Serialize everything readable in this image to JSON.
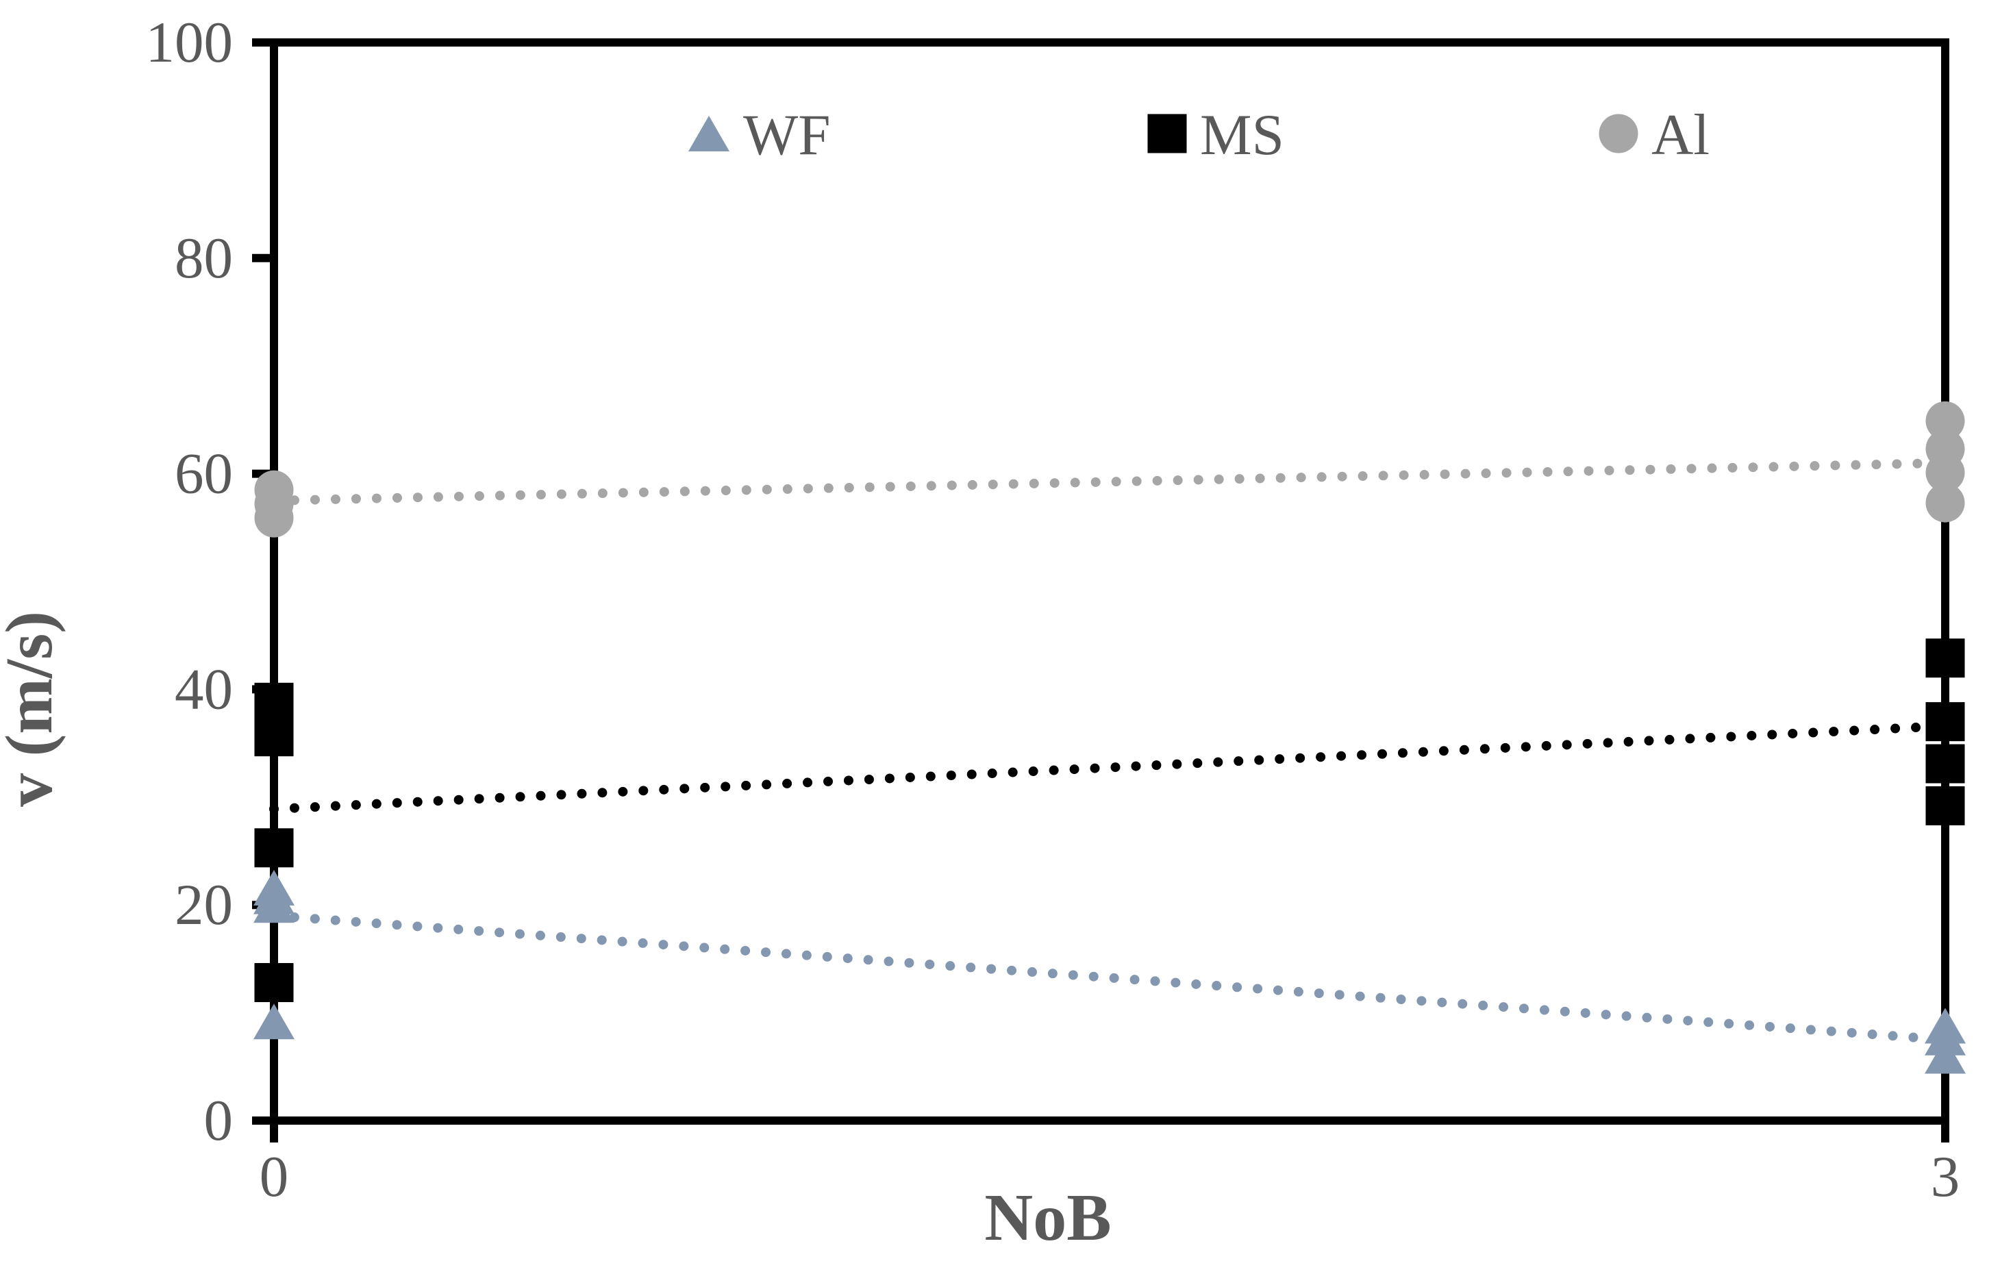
{
  "chart_data": {
    "type": "scatter",
    "title": "",
    "xlabel": "NoB",
    "ylabel": "v (m/s)",
    "xlim": [
      0,
      3
    ],
    "ylim": [
      0,
      100
    ],
    "xticks": [
      0,
      3
    ],
    "yticks": [
      100,
      80,
      60,
      40,
      20,
      0
    ],
    "grid": false,
    "legend_position": "top-center-inside",
    "axis_color": "#000000",
    "text_color": "#595959",
    "series": [
      {
        "name": "WF",
        "marker": "triangle",
        "color": "#8497B0",
        "points": [
          {
            "x": 0,
            "y": 21.6
          },
          {
            "x": 0,
            "y": 20.8
          },
          {
            "x": 0,
            "y": 20.0
          },
          {
            "x": 0,
            "y": 9.2
          },
          {
            "x": 3,
            "y": 8.8
          },
          {
            "x": 3,
            "y": 7.7
          },
          {
            "x": 3,
            "y": 6.0
          }
        ],
        "trendline": {
          "style": "dotted",
          "x1": 0,
          "y1": 19.0,
          "x2": 3,
          "y2": 7.5
        }
      },
      {
        "name": "MS",
        "marker": "square",
        "color": "#000000",
        "points": [
          {
            "x": 0,
            "y": 38.8
          },
          {
            "x": 0,
            "y": 35.6
          },
          {
            "x": 0,
            "y": 25.3
          },
          {
            "x": 0,
            "y": 12.8
          },
          {
            "x": 3,
            "y": 42.9
          },
          {
            "x": 3,
            "y": 37.0
          },
          {
            "x": 3,
            "y": 33.1
          },
          {
            "x": 3,
            "y": 29.2
          }
        ],
        "trendline": {
          "style": "dotted",
          "x1": 0,
          "y1": 28.9,
          "x2": 3,
          "y2": 36.6
        }
      },
      {
        "name": "Al",
        "marker": "circle",
        "color": "#A6A6A6",
        "points": [
          {
            "x": 0,
            "y": 58.5
          },
          {
            "x": 0,
            "y": 57.2
          },
          {
            "x": 0,
            "y": 55.9
          },
          {
            "x": 3,
            "y": 64.9
          },
          {
            "x": 3,
            "y": 62.3
          },
          {
            "x": 3,
            "y": 60.1
          },
          {
            "x": 3,
            "y": 57.3
          }
        ],
        "trendline": {
          "style": "dotted",
          "x1": 0,
          "y1": 57.5,
          "x2": 3,
          "y2": 61.0
        }
      }
    ]
  }
}
